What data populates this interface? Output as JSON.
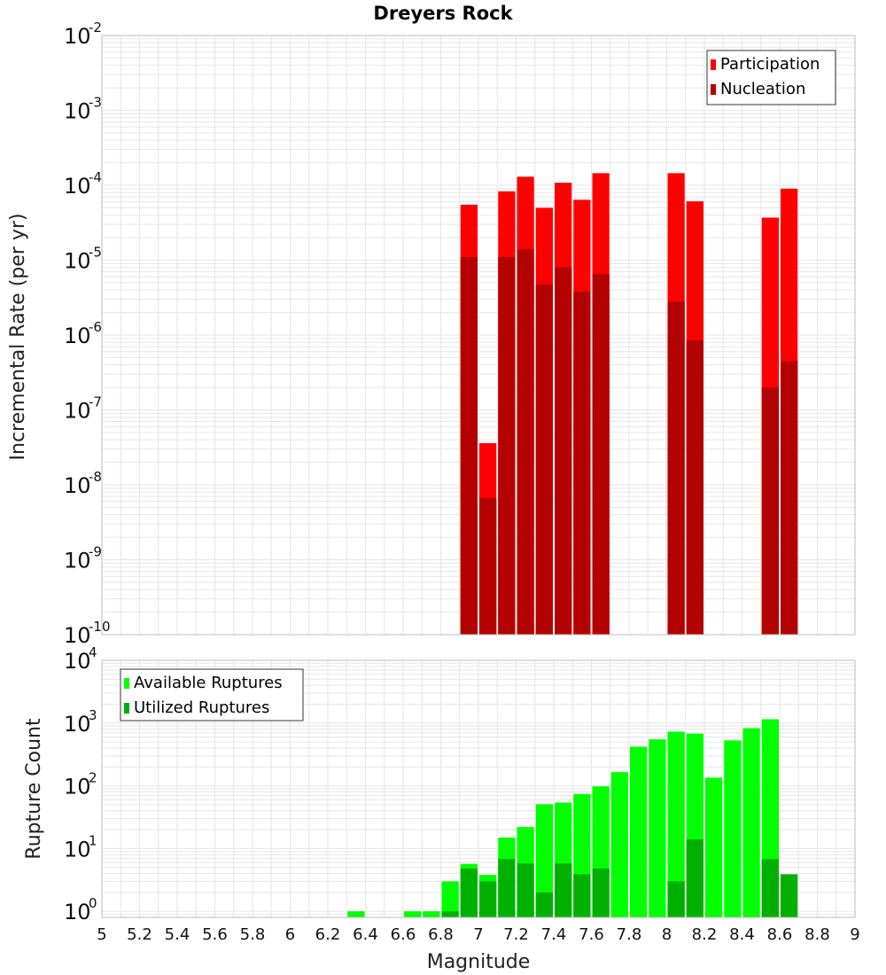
{
  "chart_data": [
    {
      "type": "bar",
      "title": "Dreyers Rock",
      "xlabel": "",
      "ylabel": "Incremental Rate (per yr)",
      "y_scale": "log",
      "ylim": [
        1e-10,
        0.01
      ],
      "xlim": [
        5,
        9
      ],
      "grid": true,
      "legend_position": "top-right",
      "x": [
        6.95,
        7.05,
        7.15,
        7.25,
        7.35,
        7.45,
        7.55,
        7.65,
        8.05,
        8.15,
        8.55,
        8.65
      ],
      "series": [
        {
          "name": "Participation",
          "color": "#ff0000",
          "values": [
            5.5e-05,
            3.6e-08,
            8.3e-05,
            0.00013,
            5e-05,
            0.000108,
            6.4e-05,
            0.000145,
            0.000145,
            6.1e-05,
            3.7e-05,
            9e-05
          ]
        },
        {
          "name": "Nucleation",
          "color": "#b30000",
          "values": [
            1.1e-05,
            6.7e-09,
            1.1e-05,
            1.4e-05,
            4.7e-06,
            8e-06,
            3.8e-06,
            6.5e-06,
            2.8e-06,
            8.5e-07,
            2e-07,
            4.5e-07
          ]
        }
      ]
    },
    {
      "type": "bar",
      "title": "",
      "xlabel": "Magnitude",
      "ylabel": "Rupture Count",
      "y_scale": "log",
      "ylim": [
        0.8,
        10000
      ],
      "xlim": [
        5,
        9
      ],
      "grid": true,
      "legend_position": "top-left",
      "x": [
        6.35,
        6.65,
        6.75,
        6.85,
        6.95,
        7.05,
        7.15,
        7.25,
        7.35,
        7.45,
        7.55,
        7.65,
        7.75,
        7.85,
        7.95,
        8.05,
        8.15,
        8.25,
        8.35,
        8.45,
        8.55,
        8.65
      ],
      "series": [
        {
          "name": "Available Ruptures",
          "color": "#00ff00",
          "values": [
            1,
            1,
            1,
            3,
            5.7,
            3.8,
            15,
            22,
            51,
            54,
            74,
            98,
            165,
            420,
            550,
            730,
            680,
            135,
            530,
            830,
            1150,
            0
          ]
        },
        {
          "name": "Utilized Ruptures",
          "color": "#00b000",
          "values": [
            0,
            0,
            0,
            1,
            4.8,
            3,
            6.8,
            5.8,
            2,
            5.8,
            3.9,
            4.8,
            0,
            0,
            0,
            3,
            14,
            0,
            0,
            0,
            6.8,
            3.9
          ]
        }
      ]
    }
  ],
  "x_ticks": [
    "5",
    "5.2",
    "5.4",
    "5.6",
    "5.8",
    "6",
    "6.2",
    "6.4",
    "6.6",
    "6.8",
    "7",
    "7.2",
    "7.4",
    "7.6",
    "7.8",
    "8",
    "8.2",
    "8.4",
    "8.6",
    "8.8",
    "9"
  ],
  "top_y_ticks": {
    "base": "10",
    "exponents": [
      "-10",
      "-9",
      "-8",
      "-7",
      "-6",
      "-5",
      "-4",
      "-3",
      "-2"
    ]
  },
  "bottom_y_ticks": {
    "base": "10",
    "exponents": [
      "0",
      "1",
      "2",
      "3",
      "4"
    ]
  },
  "colors": {
    "grid": "#e6e6e6",
    "frame": "#bbbbbb",
    "bar_edge": "#ffffff"
  }
}
